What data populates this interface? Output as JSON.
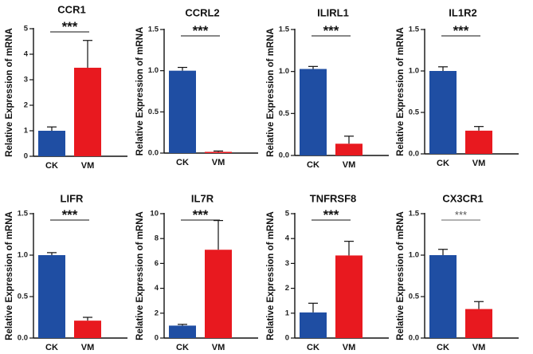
{
  "colors": {
    "ck": "#1f4ea3",
    "vm": "#e8191f",
    "axis": "#111111"
  },
  "chart_data": [
    {
      "type": "bar",
      "title": "CCR1",
      "ylabel": "Relative Expression of mRNA",
      "categories": [
        "CK",
        "VM"
      ],
      "values": [
        1.0,
        3.47
      ],
      "errors": [
        0.15,
        1.07
      ],
      "ylim": [
        0,
        5
      ],
      "yticks": [
        0,
        1,
        2,
        3,
        4,
        5
      ],
      "ytick_labels": [
        "0",
        "1",
        "2",
        "3",
        "4",
        "5"
      ],
      "significance": "***"
    },
    {
      "type": "bar",
      "title": "CCRL2",
      "ylabel": "Relative Expression of mRNA",
      "categories": [
        "CK",
        "VM"
      ],
      "values": [
        1.0,
        0.015
      ],
      "errors": [
        0.04,
        0.01
      ],
      "ylim": [
        0,
        1.5
      ],
      "yticks": [
        0,
        0.5,
        1.0,
        1.5
      ],
      "ytick_labels": [
        "0.0",
        "0.5",
        "1.0",
        "1.5"
      ],
      "significance": "***"
    },
    {
      "type": "bar",
      "title": "ILIRL1",
      "ylabel": "Relative Expression of mRNA",
      "categories": [
        "CK",
        "VM"
      ],
      "values": [
        1.03,
        0.14
      ],
      "errors": [
        0.03,
        0.09
      ],
      "ylim": [
        0,
        1.5
      ],
      "yticks": [
        0,
        0.5,
        1.0,
        1.5
      ],
      "ytick_labels": [
        "0.0",
        "0.5",
        "1.0",
        "1.5"
      ],
      "significance": "***"
    },
    {
      "type": "bar",
      "title": "IL1R2",
      "ylabel": "Relative Expression of mRNA",
      "categories": [
        "CK",
        "VM"
      ],
      "values": [
        1.0,
        0.28
      ],
      "errors": [
        0.05,
        0.05
      ],
      "ylim": [
        0,
        1.5
      ],
      "yticks": [
        0,
        0.5,
        1.0,
        1.5
      ],
      "ytick_labels": [
        "0.0",
        "0.5",
        "1.0",
        "1.5"
      ],
      "significance": "***"
    },
    {
      "type": "bar",
      "title": "LIFR",
      "ylabel": "Relative Expression of mRNA",
      "categories": [
        "CK",
        "VM"
      ],
      "values": [
        1.0,
        0.21
      ],
      "errors": [
        0.03,
        0.04
      ],
      "ylim": [
        0,
        1.5
      ],
      "yticks": [
        0,
        0.5,
        1.0,
        1.5
      ],
      "ytick_labels": [
        "0.0",
        "0.5",
        "1.0",
        "1.5"
      ],
      "significance": "***"
    },
    {
      "type": "bar",
      "title": "IL7R",
      "ylabel": "Relative Expression of mRNA",
      "categories": [
        "CK",
        "VM"
      ],
      "values": [
        1.0,
        7.1
      ],
      "errors": [
        0.1,
        2.35
      ],
      "ylim": [
        0,
        10
      ],
      "yticks": [
        0,
        2,
        4,
        6,
        8,
        10
      ],
      "ytick_labels": [
        "0",
        "2",
        "4",
        "6",
        "8",
        "10"
      ],
      "significance": "***"
    },
    {
      "type": "bar",
      "title": "TNFRSF8",
      "ylabel": "Relative Expression of mRNA",
      "categories": [
        "CK",
        "VM"
      ],
      "values": [
        1.03,
        3.32
      ],
      "errors": [
        0.37,
        0.57
      ],
      "ylim": [
        0,
        5
      ],
      "yticks": [
        0,
        1,
        2,
        3,
        4,
        5
      ],
      "ytick_labels": [
        "0",
        "1",
        "2",
        "3",
        "4",
        "5"
      ],
      "significance": "***"
    },
    {
      "type": "bar",
      "title": "CX3CR1",
      "ylabel": "Relative Expression of mRNA",
      "categories": [
        "CK",
        "VM"
      ],
      "values": [
        1.0,
        0.35
      ],
      "errors": [
        0.07,
        0.09
      ],
      "ylim": [
        0,
        1.5
      ],
      "yticks": [
        0,
        0.5,
        1.0,
        1.5
      ],
      "ytick_labels": [
        "0.0",
        "0.5",
        "1.0",
        "1.5"
      ],
      "significance": "***"
    }
  ]
}
